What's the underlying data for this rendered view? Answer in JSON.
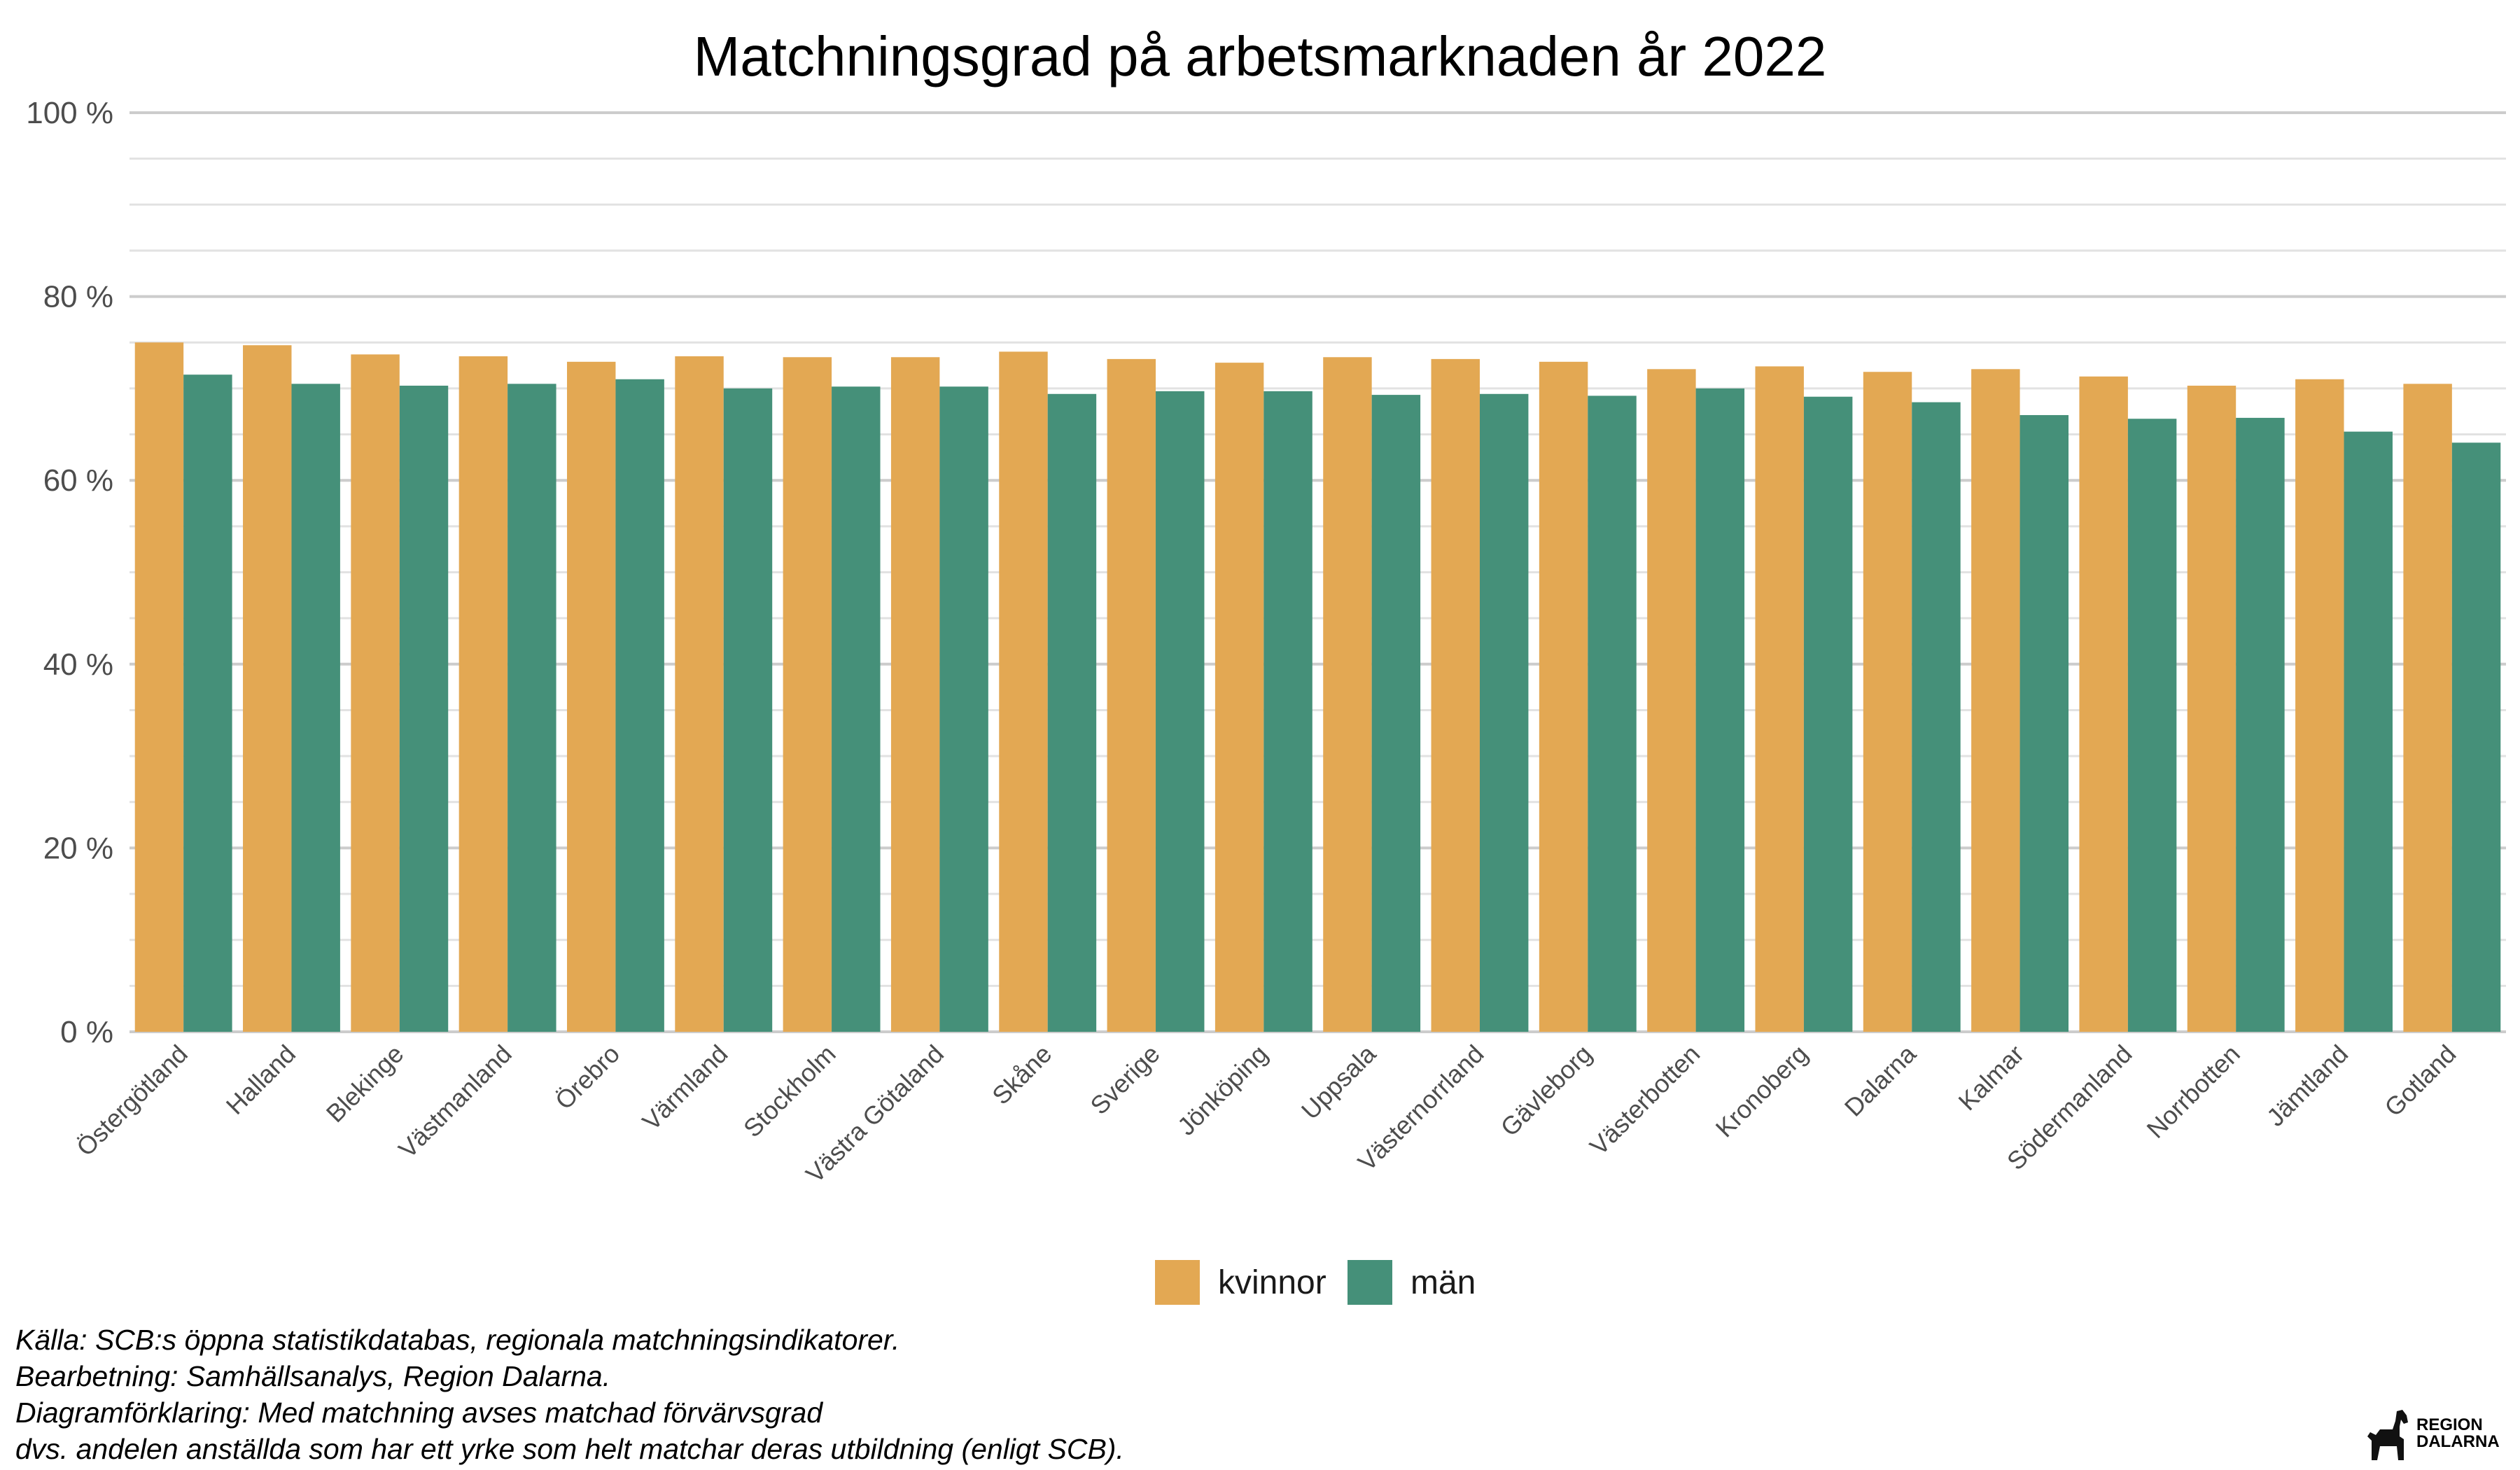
{
  "chart_data": {
    "type": "bar",
    "title": "Matchningsgrad på arbetsmarknaden år 2022",
    "xlabel": "",
    "ylabel": "",
    "ylim": [
      0,
      100
    ],
    "yticks": [
      "0 %",
      "20 %",
      "40 %",
      "60 %",
      "80 %",
      "100 %"
    ],
    "grid": true,
    "legend_position": "bottom",
    "categories": [
      "Östergötland",
      "Halland",
      "Blekinge",
      "Västmanland",
      "Örebro",
      "Värmland",
      "Stockholm",
      "Västra Götaland",
      "Skåne",
      "Sverige",
      "Jönköping",
      "Uppsala",
      "Västernorrland",
      "Gävleborg",
      "Västerbotten",
      "Kronoberg",
      "Dalarna",
      "Kalmar",
      "Södermanland",
      "Norrbotten",
      "Jämtland",
      "Gotland"
    ],
    "series": [
      {
        "name": "kvinnor",
        "color": "#E3A853",
        "values": [
          75.0,
          74.7,
          73.7,
          73.5,
          72.9,
          73.5,
          73.4,
          73.4,
          74.0,
          73.2,
          72.8,
          73.4,
          73.2,
          72.9,
          72.1,
          72.4,
          71.8,
          72.1,
          71.3,
          70.3,
          71.0,
          70.5
        ]
      },
      {
        "name": "män",
        "color": "#459079",
        "values": [
          71.5,
          70.5,
          70.3,
          70.5,
          71.0,
          70.0,
          70.2,
          70.2,
          69.4,
          69.7,
          69.7,
          69.3,
          69.4,
          69.2,
          70.0,
          69.1,
          68.5,
          67.1,
          66.7,
          66.8,
          65.3,
          64.1
        ]
      }
    ]
  },
  "caption": {
    "line1": "Källa: SCB:s öppna statistikdatabas, regionala matchningsindikatorer.",
    "line2": "Bearbetning: Samhällsanalys, Region Dalarna.",
    "line3": "Diagramförklaring: Med matchning avses matchad förvärvsgrad",
    "line4": "dvs. andelen anställda som har ett yrke som helt matchar deras utbildning (enligt SCB)."
  },
  "logo": {
    "line1": "REGION",
    "line2": "DALARNA",
    "icon": "dala-horse-icon"
  }
}
